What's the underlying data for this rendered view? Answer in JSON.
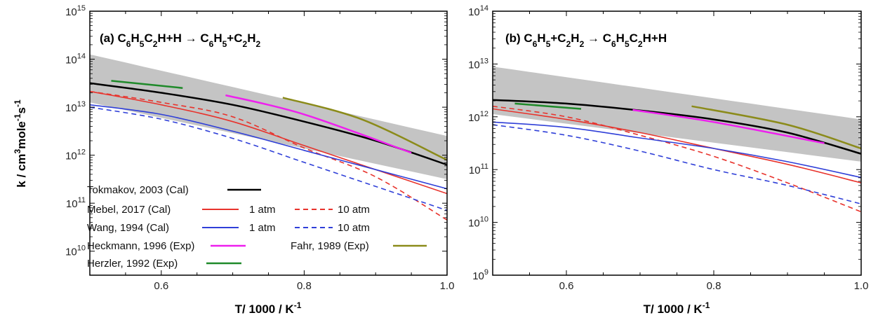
{
  "figure": {
    "ylabel_main": "k / cm",
    "ylabel_sup1": "3",
    "ylabel_mid": "mole",
    "ylabel_sup2": "-1",
    "ylabel_mid2": "s",
    "ylabel_sup3": "-1",
    "xlabel_main": "T/ 1000 / K",
    "xlabel_sup": "-1"
  },
  "legend": {
    "tokmakov": "Tokmakov, 2003 (Cal)",
    "mebel": "Mebel, 2017 (Cal)",
    "wang": "Wang, 1994 (Cal)",
    "heckmann": "Heckmann, 1996 (Exp)",
    "herzler": "Herzler, 1992 (Exp)",
    "fahr": "Fahr, 1989 (Exp)",
    "atm1": "1 atm",
    "atm10": "10 atm"
  },
  "colors": {
    "tokmakov": "#000000",
    "mebel": "#e8332c",
    "wang": "#2f3fd8",
    "heckmann": "#ee1fee",
    "herzler": "#1f8a2a",
    "fahr": "#8b8b1a",
    "band": "#c4c4c4"
  },
  "chart_data": [
    {
      "type": "line",
      "panel": "a",
      "title_parts": [
        "(a) C",
        "6",
        "H",
        "5",
        "C",
        "2",
        "H+H → C",
        "6",
        "H",
        "5",
        "+C",
        "2",
        "H",
        "2"
      ],
      "xlabel": "T/ 1000 / K-1",
      "ylabel": "k / cm3mole-1s-1",
      "xlim": [
        0.5,
        1.0
      ],
      "ylim_log10": [
        9.5,
        15
      ],
      "yscale": "log",
      "xticks": [
        0.6,
        0.8,
        1.0
      ],
      "xtick_labels": [
        "0.6",
        "0.8",
        "1.0"
      ],
      "ytick_exps": [
        10,
        11,
        12,
        13,
        14,
        15
      ],
      "ytick_base": "10",
      "band": {
        "x": [
          0.5,
          1.0
        ],
        "upper_log10": [
          14.1,
          12.4
        ],
        "lower_log10": [
          13.1,
          11.5
        ]
      },
      "series": [
        {
          "name": "Tokmakov, 2003 (Cal)",
          "key": "tokmakov",
          "dash": false,
          "x": [
            0.5,
            0.6,
            0.7,
            0.8,
            0.9,
            1.0
          ],
          "y_log10": [
            13.5,
            13.3,
            13.05,
            12.7,
            12.3,
            11.8
          ]
        },
        {
          "name": "Mebel, 2017 (Cal) 1 atm",
          "key": "mebel",
          "dash": false,
          "x": [
            0.5,
            0.6,
            0.7,
            0.8,
            0.9,
            1.0
          ],
          "y_log10": [
            13.33,
            13.05,
            12.7,
            12.2,
            11.7,
            11.2
          ]
        },
        {
          "name": "Mebel, 2017 (Cal) 10 atm",
          "key": "mebel",
          "dash": true,
          "x": [
            0.5,
            0.6,
            0.7,
            0.8,
            0.9,
            1.0
          ],
          "y_log10": [
            13.33,
            13.1,
            12.8,
            12.15,
            11.55,
            10.65
          ]
        },
        {
          "name": "Wang, 1994 (Cal) 1 atm",
          "key": "wang",
          "dash": false,
          "x": [
            0.5,
            0.6,
            0.7,
            0.8,
            0.9,
            1.0
          ],
          "y_log10": [
            13.05,
            12.85,
            12.5,
            12.1,
            11.7,
            11.3
          ]
        },
        {
          "name": "Wang, 1994 (Cal) 10 atm",
          "key": "wang",
          "dash": true,
          "x": [
            0.5,
            0.6,
            0.7,
            0.8,
            0.9,
            1.0
          ],
          "y_log10": [
            13.0,
            12.75,
            12.35,
            11.85,
            11.35,
            10.85
          ]
        },
        {
          "name": "Heckmann, 1996 (Exp)",
          "key": "heckmann",
          "dash": false,
          "x": [
            0.69,
            0.8,
            0.95
          ],
          "y_log10": [
            13.25,
            12.85,
            12.05
          ]
        },
        {
          "name": "Herzler, 1992 (Exp)",
          "key": "herzler",
          "dash": false,
          "x": [
            0.53,
            0.63
          ],
          "y_log10": [
            13.55,
            13.4
          ]
        },
        {
          "name": "Fahr, 1989 (Exp)",
          "key": "fahr",
          "dash": false,
          "x": [
            0.77,
            0.88,
            1.0
          ],
          "y_log10": [
            13.2,
            12.75,
            11.9
          ]
        }
      ]
    },
    {
      "type": "line",
      "panel": "b",
      "title_parts": [
        "(b) C",
        "6",
        "H",
        "5",
        "+C",
        "2",
        "H",
        "2",
        " → C",
        "6",
        "H",
        "5",
        "C",
        "2",
        "H+H"
      ],
      "xlabel": "T/ 1000 / K-1",
      "ylabel": "",
      "xlim": [
        0.5,
        1.0
      ],
      "ylim_log10": [
        9,
        14
      ],
      "yscale": "log",
      "xticks": [
        0.6,
        0.8,
        1.0
      ],
      "xtick_labels": [
        "0.6",
        "0.8",
        "1.0"
      ],
      "ytick_exps": [
        9,
        10,
        11,
        12,
        13,
        14
      ],
      "ytick_base": "10",
      "band": {
        "x": [
          0.5,
          1.0
        ],
        "upper_log10": [
          12.95,
          11.95
        ],
        "lower_log10": [
          12.05,
          11.15
        ]
      },
      "series": [
        {
          "name": "Tokmakov, 2003 (Cal)",
          "key": "tokmakov",
          "dash": false,
          "x": [
            0.5,
            0.6,
            0.7,
            0.8,
            0.9,
            1.0
          ],
          "y_log10": [
            12.32,
            12.25,
            12.12,
            11.95,
            11.7,
            11.3
          ]
        },
        {
          "name": "Mebel, 2017 (Cal) 1 atm",
          "key": "mebel",
          "dash": false,
          "x": [
            0.5,
            0.6,
            0.7,
            0.8,
            0.9,
            1.0
          ],
          "y_log10": [
            12.15,
            11.95,
            11.7,
            11.4,
            11.1,
            10.75
          ]
        },
        {
          "name": "Mebel, 2017 (Cal) 10 atm",
          "key": "mebel",
          "dash": true,
          "x": [
            0.5,
            0.6,
            0.7,
            0.8,
            0.9,
            1.0
          ],
          "y_log10": [
            12.2,
            12.0,
            11.65,
            11.25,
            10.75,
            10.2
          ]
        },
        {
          "name": "Wang, 1994 (Cal) 1 atm",
          "key": "wang",
          "dash": false,
          "x": [
            0.5,
            0.6,
            0.7,
            0.8,
            0.9,
            1.0
          ],
          "y_log10": [
            11.9,
            11.8,
            11.6,
            11.4,
            11.15,
            10.85
          ]
        },
        {
          "name": "Wang, 1994 (Cal) 10 atm",
          "key": "wang",
          "dash": true,
          "x": [
            0.5,
            0.6,
            0.7,
            0.8,
            0.9,
            1.0
          ],
          "y_log10": [
            11.85,
            11.65,
            11.35,
            11.0,
            10.7,
            10.35
          ]
        },
        {
          "name": "Heckmann, 1996 (Exp)",
          "key": "heckmann",
          "dash": false,
          "x": [
            0.69,
            0.8,
            0.95
          ],
          "y_log10": [
            12.13,
            11.9,
            11.5
          ]
        },
        {
          "name": "Herzler, 1992 (Exp)",
          "key": "herzler",
          "dash": false,
          "x": [
            0.53,
            0.62
          ],
          "y_log10": [
            12.25,
            12.15
          ]
        },
        {
          "name": "Fahr, 1989 (Exp)",
          "key": "fahr",
          "dash": false,
          "x": [
            0.77,
            0.9,
            1.0
          ],
          "y_log10": [
            12.2,
            11.85,
            11.4
          ]
        }
      ]
    }
  ]
}
